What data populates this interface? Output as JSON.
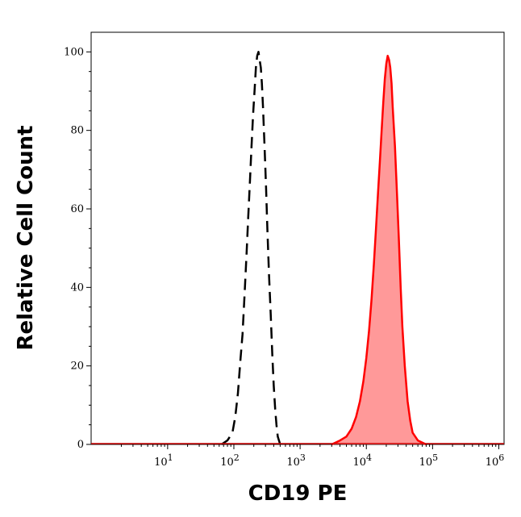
{
  "chart_data": {
    "type": "area",
    "title": "",
    "xlabel": "CD19 PE",
    "ylabel": "Relative Cell Count",
    "x_scale": "log",
    "xlim": [
      0.7,
      1200000
    ],
    "ylim": [
      0,
      105
    ],
    "x_ticks": [
      {
        "base": "10",
        "exp": "1",
        "value": 10
      },
      {
        "base": "10",
        "exp": "2",
        "value": 100
      },
      {
        "base": "10",
        "exp": "3",
        "value": 1000
      },
      {
        "base": "10",
        "exp": "4",
        "value": 10000
      },
      {
        "base": "10",
        "exp": "5",
        "value": 100000
      },
      {
        "base": "10",
        "exp": "6",
        "value": 1000000
      }
    ],
    "y_ticks": [
      {
        "label": "0",
        "value": 0
      },
      {
        "label": "20",
        "value": 20
      },
      {
        "label": "40",
        "value": 40
      },
      {
        "label": "60",
        "value": 60
      },
      {
        "label": "80",
        "value": 80
      },
      {
        "label": "100",
        "value": 100
      }
    ],
    "grid": false,
    "legend": "none",
    "series": [
      {
        "style": "dashed-outline",
        "color": "#000000",
        "x": [
          65,
          80,
          95,
          105,
          115,
          125,
          135,
          145,
          155,
          165,
          175,
          185,
          195,
          205,
          215,
          225,
          235,
          245,
          255,
          265,
          275,
          290,
          305,
          320,
          340,
          360,
          380,
          400,
          420,
          440,
          460,
          480,
          500
        ],
        "y": [
          0,
          1,
          3,
          7,
          13,
          21,
          28,
          38,
          48,
          58,
          67,
          76,
          84,
          90,
          96,
          99,
          100,
          98,
          96,
          92,
          86,
          76,
          66,
          55,
          43,
          33,
          23,
          15,
          9,
          5,
          2,
          1,
          0
        ]
      },
      {
        "style": "filled",
        "color": "#ff0000",
        "fill": "#ff9999",
        "x": [
          3000,
          4000,
          5000,
          6000,
          7000,
          8000,
          9000,
          10000,
          11000,
          12000,
          13000,
          14000,
          15000,
          16000,
          17000,
          18000,
          19000,
          20000,
          21000,
          22000,
          23000,
          24000,
          25000,
          27000,
          29000,
          31000,
          33000,
          35000,
          38000,
          42000,
          46000,
          50000,
          60000,
          80000
        ],
        "y": [
          0,
          1,
          2,
          4,
          7,
          11,
          16,
          22,
          29,
          37,
          46,
          55,
          64,
          72,
          80,
          87,
          93,
          97,
          99,
          98,
          96,
          92,
          86,
          76,
          64,
          52,
          40,
          30,
          20,
          11,
          6,
          3,
          1,
          0
        ]
      }
    ]
  }
}
